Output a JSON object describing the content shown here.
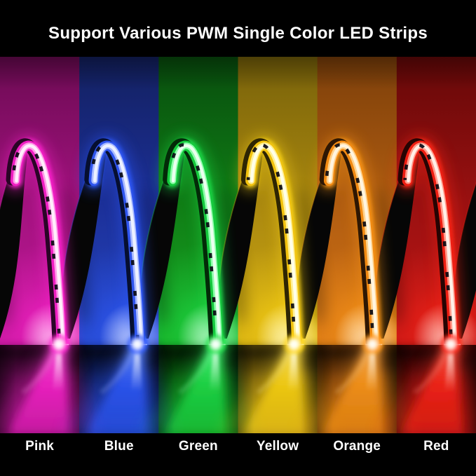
{
  "header": {
    "title": "Support Various PWM Single Color LED Strips",
    "background": "#000000",
    "text_color": "#ffffff"
  },
  "footer": {
    "background": "#000000",
    "text_color": "#ffffff"
  },
  "strip": {
    "pcb_back_color": "#060606",
    "chip_color": "#0a0a12"
  },
  "panels": [
    {
      "label": "Pink",
      "wall_top": "#6b0a52",
      "wall_base": "#a3137f",
      "wall_bot": "#c01798",
      "floor_top": "#3f0832",
      "floor_bot": "#8a1070",
      "glow": "#ff24d0",
      "edge": "#ef1ec2",
      "mid": "#ff9ce8",
      "core": "#ffeefb",
      "rim": "#2a0526",
      "beam": "#ff55dd"
    },
    {
      "label": "Blue",
      "wall_top": "#13205f",
      "wall_base": "#1c3099",
      "wall_bot": "#2647c4",
      "floor_top": "#0a1440",
      "floor_bot": "#1b3aa8",
      "glow": "#2e5aff",
      "edge": "#2f55ee",
      "mid": "#aabaff",
      "core": "#edf1ff",
      "rim": "#060f30",
      "beam": "#6d94ff"
    },
    {
      "label": "Green",
      "wall_top": "#084d0d",
      "wall_base": "#107e16",
      "wall_bot": "#17a822",
      "floor_top": "#053a08",
      "floor_bot": "#0f8c18",
      "glow": "#1fe24b",
      "edge": "#16c93e",
      "mid": "#8effab",
      "core": "#eaffef",
      "rim": "#032a08",
      "beam": "#50ff85"
    },
    {
      "label": "Yellow",
      "wall_top": "#77610a",
      "wall_base": "#ab890f",
      "wall_bot": "#cfa913",
      "floor_top": "#57470a",
      "floor_bot": "#b68f12",
      "glow": "#ffd714",
      "edge": "#f2c20e",
      "mid": "#fff095",
      "core": "#ffffe9",
      "rim": "#2e2503",
      "beam": "#ffe768"
    },
    {
      "label": "Orange",
      "wall_top": "#7c3f0a",
      "wall_base": "#b15d11",
      "wall_bot": "#d47416",
      "floor_top": "#5c2e08",
      "floor_bot": "#b5610f",
      "glow": "#ff9918",
      "edge": "#f28a12",
      "mid": "#ffd28c",
      "core": "#fff5e0",
      "rim": "#2e1703",
      "beam": "#ffb25c"
    },
    {
      "label": "Red",
      "wall_top": "#650808",
      "wall_base": "#9b1111",
      "wall_bot": "#c01616",
      "floor_top": "#4a0606",
      "floor_bot": "#a01212",
      "glow": "#ff2517",
      "edge": "#ee1e12",
      "mid": "#ff9c8c",
      "core": "#fff0e8",
      "rim": "#260403",
      "beam": "#ff5f4d"
    }
  ]
}
